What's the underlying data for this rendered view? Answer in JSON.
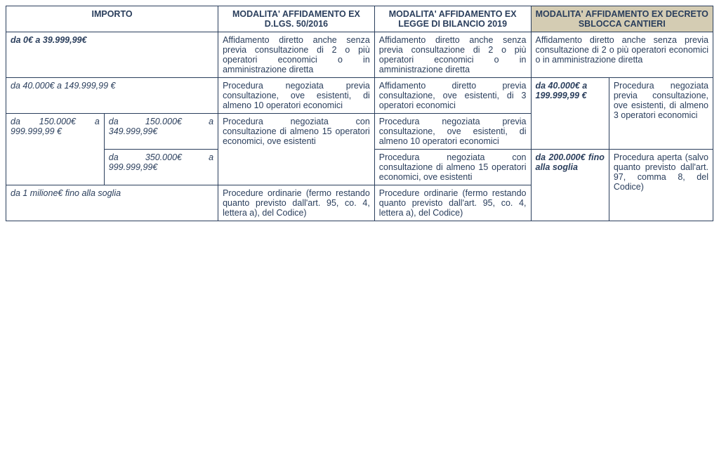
{
  "headers": {
    "importo": "IMPORTO",
    "dlgs": "MODALITA' AFFIDAMENTO EX D.LGS. 50/2016",
    "bilancio": "MODALITA' AFFIDAMENTO EX LEGGE DI BILANCIO 2019",
    "sblocca": "MODALITA' AFFIDAMENTO EX DECRETO SBLOCCA CANTIERI"
  },
  "rows": {
    "r1": {
      "importo": "da 0€ a 39.999,99€",
      "dlgs": "Affidamento diretto anche senza previa consultazione di 2 o più operatori economici o in amministrazione diretta",
      "bilancio": "Affidamento diretto anche senza previa consultazione di 2 o più operatori economici o in amministrazione diretta",
      "sblocca": "Affidamento diretto anche senza previa consultazione di 2 o più operatori economici o in amministrazione diretta"
    },
    "r2": {
      "importo": "da 40.000€ a 149.999,99 €",
      "dlgs": "Procedura negoziata previa consultazione, ove esistenti, di almeno 10 operatori economici",
      "bilancio": "Affidamento diretto previa consultazione, ove esistenti, di 3 operatori economici",
      "sblocca_range": "da 40.000€ a 199.999,99 €",
      "sblocca_text": "Procedura negoziata previa consultazione, ove esistenti, di almeno 3 operatori economici"
    },
    "r3": {
      "importo_outer": "da 150.000€ a 999.999,99 €",
      "importo_a": "da 150.000€ a 349.999,99€",
      "importo_b": "da 350.000€ a 999.999,99€",
      "dlgs": "Procedura negoziata con consultazione di almeno 15 operatori economici, ove esistenti",
      "bilancio_a": "Procedura negoziata previa consultazione, ove esistenti, di almeno 10 operatori economici",
      "bilancio_b": "Procedura negoziata con consultazione di almeno 15 operatori economici, ove esistenti",
      "sblocca_range": "da 200.000€ fino alla soglia",
      "sblocca_text": "Procedura aperta (salvo quanto previsto dall'art. 97, comma 8, del Codice)"
    },
    "r4": {
      "importo": "da 1 milione€ fino alla soglia",
      "dlgs": "Procedure ordinarie (fermo restando quanto previsto dall'art. 95, co. 4, lettera a), del Codice)",
      "bilancio": "Procedure ordinarie (fermo restando quanto previsto dall'art. 95, co. 4, lettera a), del Codice)"
    }
  }
}
